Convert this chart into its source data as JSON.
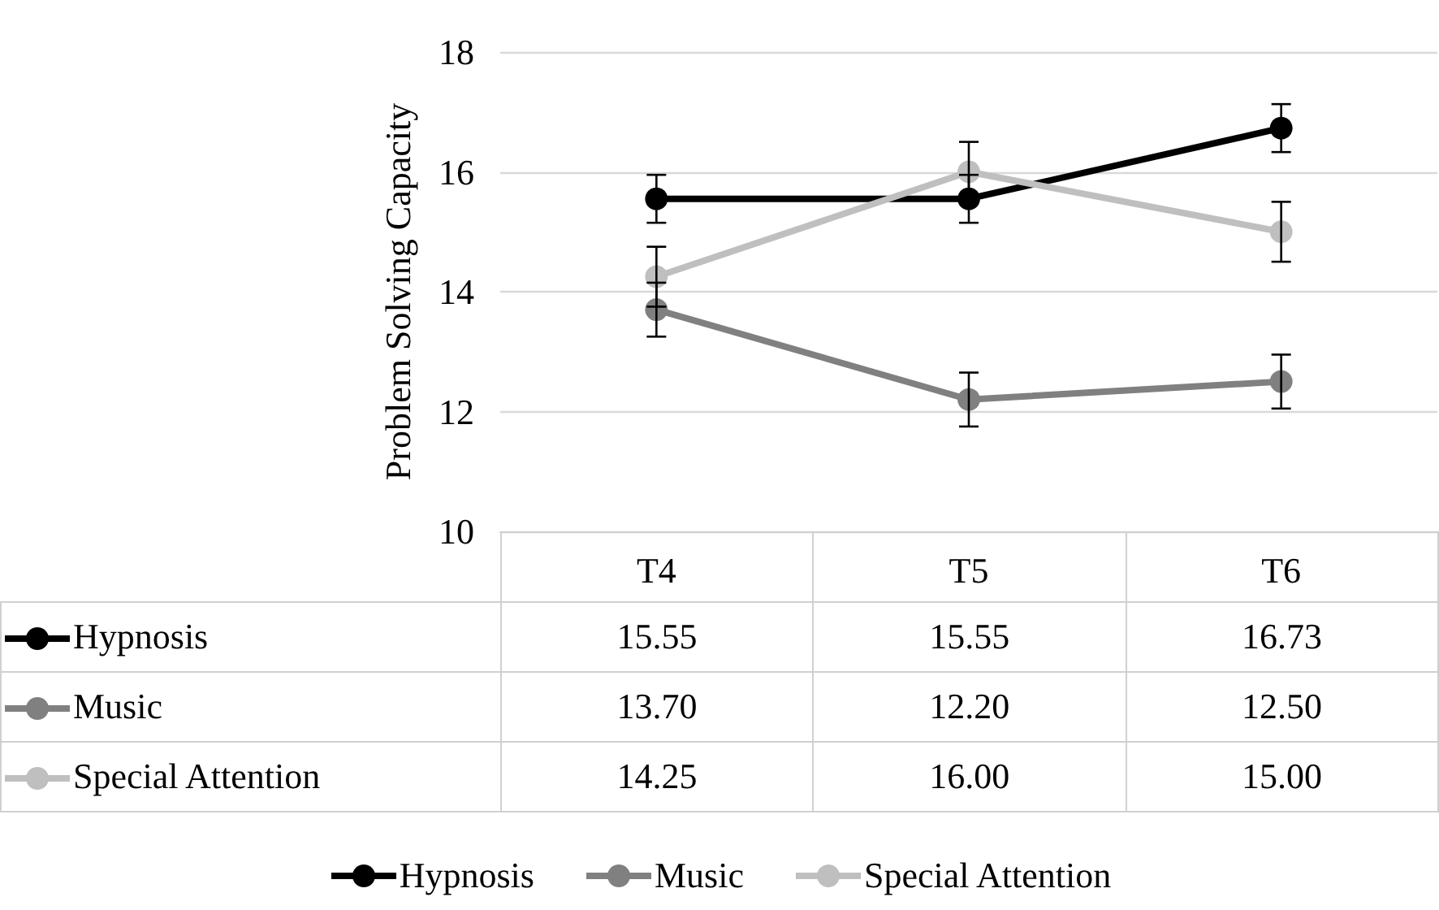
{
  "chart_data": {
    "type": "line",
    "ylabel": "Problem Solving Capacity",
    "categories": [
      "T4",
      "T5",
      "T6"
    ],
    "series": [
      {
        "name": "Hypnosis",
        "color": "#000000",
        "values": [
          15.55,
          15.55,
          16.73
        ],
        "errors": [
          0.4,
          0.4,
          0.4
        ],
        "value_labels": [
          "15.55",
          "15.55",
          "16.73"
        ]
      },
      {
        "name": "Music",
        "color": "#808080",
        "values": [
          13.7,
          12.2,
          12.5
        ],
        "errors": [
          0.45,
          0.45,
          0.45
        ],
        "value_labels": [
          "13.70",
          "12.20",
          "12.50"
        ]
      },
      {
        "name": "Special Attention",
        "color": "#bfbfbf",
        "values": [
          14.25,
          16.0,
          15.0
        ],
        "errors": [
          0.5,
          0.5,
          0.5
        ],
        "value_labels": [
          "14.25",
          "16.00",
          "15.00"
        ]
      }
    ],
    "ylim": [
      10,
      18
    ],
    "yticks": [
      10,
      12,
      14,
      16,
      18
    ],
    "grid": "y",
    "legend": "bottom",
    "marker": "circle",
    "line_style": "solid"
  }
}
